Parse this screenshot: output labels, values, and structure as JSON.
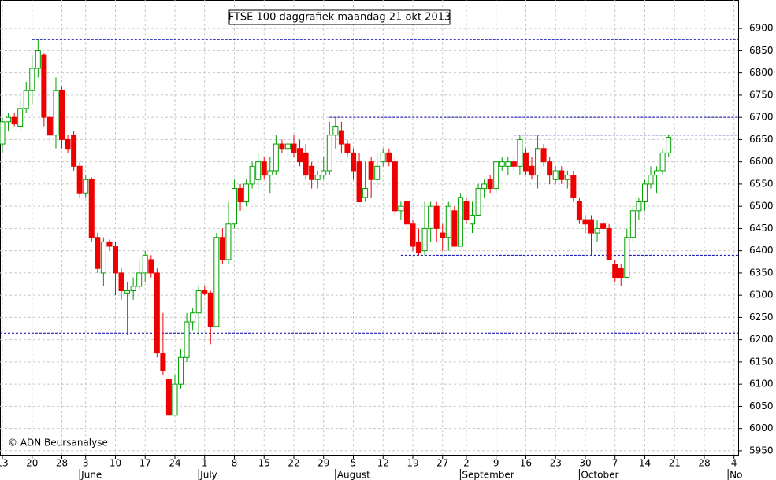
{
  "chart_data": {
    "type": "candlestick",
    "title": "FTSE 100 daggrafiek maandag 21 okt 2013",
    "copyright": "© ADN Beursanalyse",
    "up_color": "#00a000",
    "down_color": "#ee0000",
    "hline_color": "#0000aa",
    "grid": true,
    "open": [
      6640,
      6690,
      6700,
      6680,
      6720,
      6760,
      6810,
      6840,
      6700,
      6660,
      6760,
      6650,
      6660,
      6590,
      6530,
      6560,
      6430,
      6350,
      6420,
      6410,
      6350,
      6305,
      6310,
      6320,
      6350,
      6380,
      6350,
      6170,
      6110,
      6030,
      6100,
      6160,
      6240,
      6260,
      6310,
      6305,
      6230,
      6430,
      6380,
      6460,
      6540,
      6510,
      6550,
      6560,
      6600,
      6570,
      6580,
      6640,
      6630,
      6640,
      6630,
      6620,
      6590,
      6560,
      6570,
      6580,
      6660,
      6670,
      6640,
      6620,
      6600,
      6520,
      6600,
      6560,
      6600,
      6620,
      6600,
      6490,
      6510,
      6460,
      6420,
      6400,
      6450,
      6500,
      6440,
      6430,
      6490,
      6410,
      6510,
      6460,
      6480,
      6540,
      6560,
      6540,
      6590,
      6590,
      6600,
      6590,
      6620,
      6590,
      6570,
      6630,
      6600,
      6560,
      6580,
      6560,
      6570,
      6510,
      6470,
      6470,
      6440,
      6460,
      6450,
      6370,
      6360,
      6340,
      6430,
      6490,
      6510,
      6550,
      6570,
      6580,
      6620
    ],
    "high": [
      6700,
      6710,
      6710,
      6740,
      6780,
      6840,
      6875,
      6845,
      6720,
      6790,
      6770,
      6660,
      6670,
      6600,
      6570,
      6565,
      6440,
      6430,
      6425,
      6420,
      6360,
      6330,
      6340,
      6380,
      6400,
      6390,
      6360,
      6260,
      6120,
      6120,
      6180,
      6260,
      6270,
      6320,
      6320,
      6310,
      6440,
      6450,
      6510,
      6560,
      6550,
      6560,
      6600,
      6620,
      6610,
      6610,
      6660,
      6650,
      6650,
      6660,
      6650,
      6640,
      6600,
      6580,
      6610,
      6690,
      6700,
      6690,
      6650,
      6630,
      6620,
      6600,
      6610,
      6620,
      6630,
      6630,
      6610,
      6510,
      6520,
      6470,
      6450,
      6510,
      6510,
      6510,
      6460,
      6510,
      6500,
      6530,
      6520,
      6510,
      6550,
      6560,
      6570,
      6600,
      6610,
      6610,
      6610,
      6660,
      6630,
      6610,
      6660,
      6640,
      6610,
      6590,
      6590,
      6580,
      6580,
      6520,
      6480,
      6480,
      6470,
      6480,
      6460,
      6380,
      6370,
      6450,
      6500,
      6520,
      6560,
      6590,
      6590,
      6630,
      6660
    ],
    "low": [
      6620,
      6670,
      6680,
      6670,
      6710,
      6730,
      6790,
      6680,
      6640,
      6630,
      6630,
      6620,
      6580,
      6520,
      6520,
      6420,
      6350,
      6320,
      6400,
      6300,
      6290,
      6210,
      6290,
      6310,
      6330,
      6340,
      6160,
      6120,
      6030,
      6030,
      6090,
      6150,
      6220,
      6210,
      6300,
      6190,
      6230,
      6370,
      6370,
      6450,
      6490,
      6500,
      6540,
      6540,
      6560,
      6530,
      6570,
      6620,
      6610,
      6610,
      6590,
      6560,
      6540,
      6540,
      6560,
      6570,
      6630,
      6620,
      6610,
      6560,
      6510,
      6510,
      6520,
      6540,
      6590,
      6590,
      6480,
      6470,
      6450,
      6400,
      6390,
      6390,
      6420,
      6420,
      6400,
      6400,
      6410,
      6410,
      6460,
      6440,
      6480,
      6520,
      6530,
      6530,
      6580,
      6570,
      6580,
      6570,
      6570,
      6560,
      6540,
      6590,
      6550,
      6550,
      6550,
      6540,
      6510,
      6460,
      6440,
      6390,
      6420,
      6440,
      6380,
      6330,
      6320,
      6340,
      6420,
      6470,
      6490,
      6540,
      6530,
      6570,
      6610
    ],
    "close": [
      6690,
      6700,
      6685,
      6720,
      6760,
      6810,
      6850,
      6700,
      6660,
      6760,
      6650,
      6630,
      6590,
      6530,
      6560,
      6430,
      6360,
      6420,
      6410,
      6350,
      6310,
      6310,
      6320,
      6350,
      6390,
      6350,
      6170,
      6130,
      6030,
      6100,
      6160,
      6240,
      6260,
      6310,
      6305,
      6230,
      6430,
      6380,
      6460,
      6540,
      6510,
      6550,
      6590,
      6600,
      6570,
      6580,
      6640,
      6630,
      6640,
      6620,
      6600,
      6570,
      6560,
      6570,
      6580,
      6660,
      6680,
      6640,
      6620,
      6580,
      6510,
      6540,
      6560,
      6590,
      6620,
      6600,
      6490,
      6500,
      6460,
      6410,
      6395,
      6450,
      6500,
      6450,
      6430,
      6500,
      6410,
      6520,
      6470,
      6480,
      6540,
      6550,
      6540,
      6600,
      6600,
      6600,
      6590,
      6650,
      6580,
      6570,
      6630,
      6600,
      6570,
      6580,
      6560,
      6570,
      6520,
      6470,
      6460,
      6440,
      6450,
      6450,
      6380,
      6340,
      6340,
      6430,
      6490,
      6510,
      6550,
      6570,
      6580,
      6620,
      6655
    ],
    "xlim": [
      -0.4,
      123.7
    ],
    "ylim": [
      5941,
      6964
    ],
    "yticks": [
      5950,
      6000,
      6050,
      6100,
      6150,
      6200,
      6250,
      6300,
      6350,
      6400,
      6450,
      6500,
      6550,
      6600,
      6650,
      6700,
      6750,
      6800,
      6850,
      6900
    ],
    "xticks": [
      {
        "value": 0,
        "label": "13"
      },
      {
        "value": 5,
        "label": "20"
      },
      {
        "value": 10,
        "label": "28"
      },
      {
        "value": 14,
        "label": "3"
      },
      {
        "value": 19,
        "label": "10"
      },
      {
        "value": 24,
        "label": "17"
      },
      {
        "value": 29,
        "label": "24"
      },
      {
        "value": 34,
        "label": "1"
      },
      {
        "value": 39,
        "label": "8"
      },
      {
        "value": 44,
        "label": "15"
      },
      {
        "value": 49,
        "label": "22"
      },
      {
        "value": 54,
        "label": "29"
      },
      {
        "value": 59,
        "label": "5"
      },
      {
        "value": 64,
        "label": "12"
      },
      {
        "value": 69,
        "label": "19"
      },
      {
        "value": 74,
        "label": "27"
      },
      {
        "value": 78,
        "label": "2"
      },
      {
        "value": 83,
        "label": "9"
      },
      {
        "value": 88,
        "label": "16"
      },
      {
        "value": 93,
        "label": "23"
      },
      {
        "value": 98,
        "label": "30"
      },
      {
        "value": 103,
        "label": "7"
      },
      {
        "value": 108,
        "label": "14"
      },
      {
        "value": 113,
        "label": "21"
      },
      {
        "value": 118,
        "label": "28"
      },
      {
        "value": 123,
        "label": "4"
      }
    ],
    "months": [
      {
        "value": 13,
        "label": "June"
      },
      {
        "value": 33,
        "label": "July"
      },
      {
        "value": 56,
        "label": "August"
      },
      {
        "value": 77,
        "label": "September"
      },
      {
        "value": 97,
        "label": "October"
      },
      {
        "value": 122,
        "label": "No"
      }
    ],
    "hlines": [
      {
        "value": 6875,
        "start": 5
      },
      {
        "value": 6700,
        "start": 55
      },
      {
        "value": 6660,
        "start": 86
      },
      {
        "value": 6390,
        "start": 67
      },
      {
        "value": 6215,
        "start": -0.4
      }
    ]
  }
}
